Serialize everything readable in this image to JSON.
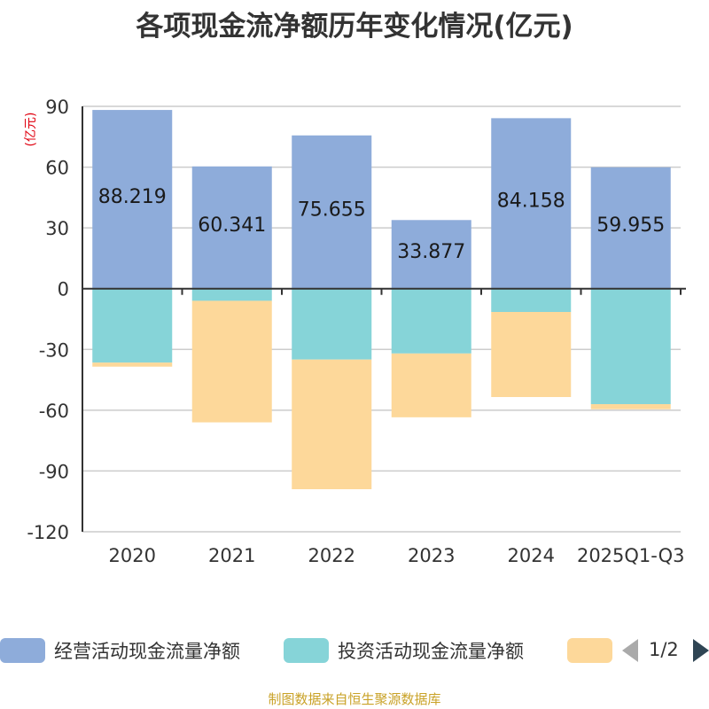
{
  "title": "各项现金流净额历年变化情况(亿元)",
  "unit_label": "(亿元)",
  "footer": "制图数据来自恒生聚源数据库",
  "legend": {
    "items": [
      {
        "label": "经营活动现金流量净额",
        "color": "#8eacda"
      },
      {
        "label": "投资活动现金流量净额",
        "color": "#86d4d8"
      },
      {
        "label": "",
        "color": "#fdd89a"
      }
    ],
    "pager": "1/2"
  },
  "chart_data": {
    "type": "bar",
    "stacked": true,
    "title": "各项现金流净额历年变化情况(亿元)",
    "ylabel": "(亿元)",
    "xlabel": "",
    "ylim": [
      -120,
      90
    ],
    "yticks": [
      90,
      60,
      30,
      0,
      -30,
      -60,
      -90,
      -120
    ],
    "categories": [
      "2020",
      "2021",
      "2022",
      "2023",
      "2024",
      "2025Q1-Q3"
    ],
    "series": [
      {
        "name": "经营活动现金流量净额",
        "color": "#8eacda",
        "values": [
          88.219,
          60.341,
          75.655,
          33.877,
          84.158,
          59.955
        ],
        "labels": [
          "88.219",
          "60.341",
          "75.655",
          "33.877",
          "84.158",
          "59.955"
        ]
      },
      {
        "name": "投资活动现金流量净额",
        "color": "#86d4d8",
        "values": [
          -36.5,
          -6.0,
          -35.0,
          -32.0,
          -11.5,
          -57.0
        ]
      },
      {
        "name": "",
        "color": "#fdd89a",
        "values": [
          -2.0,
          -60.0,
          -64.0,
          -31.5,
          -42.0,
          -2.5
        ]
      }
    ]
  }
}
